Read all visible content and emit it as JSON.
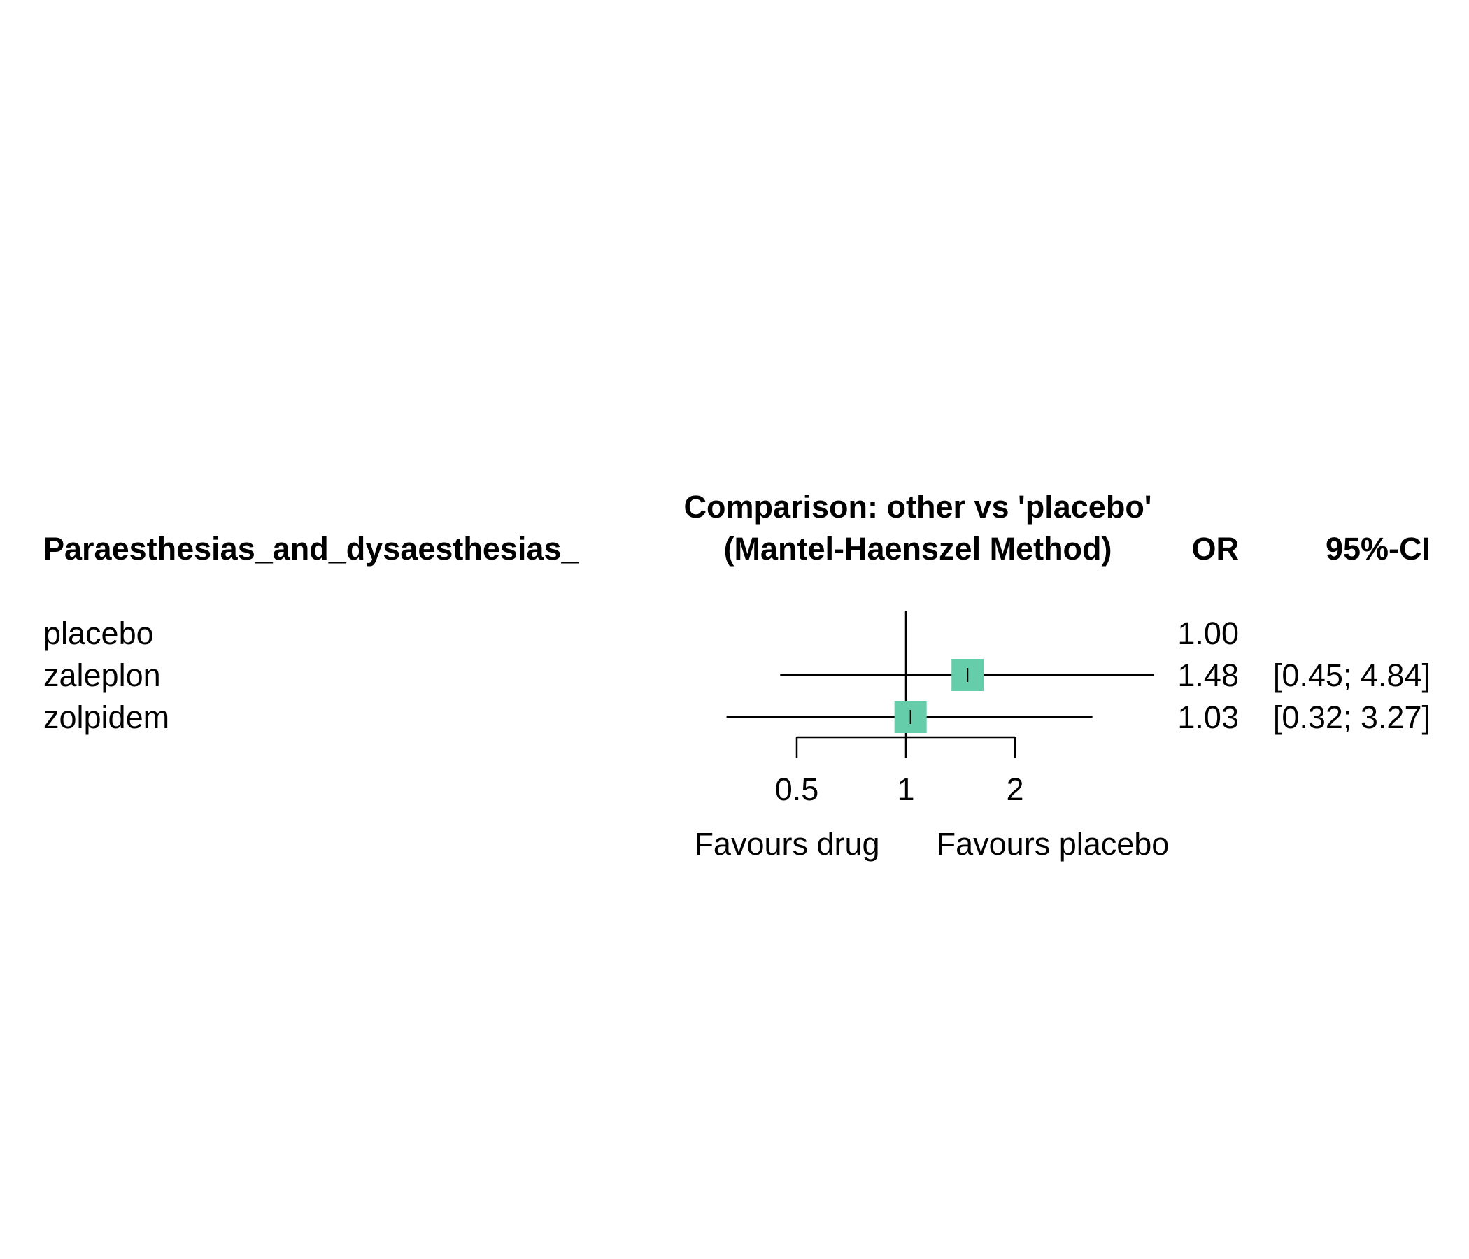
{
  "chart_data": {
    "type": "forest",
    "scale": "log",
    "null_value": 1,
    "header": {
      "outcome_label": "Paraesthesias_and_dysaesthesias_",
      "comparison_line1": "Comparison: other vs 'placebo'",
      "comparison_line2": "(Mantel-Haenszel Method)",
      "estimate_label": "OR",
      "ci_label": "95%-CI"
    },
    "rows": [
      {
        "treatment": "placebo",
        "or": 1.0,
        "or_text": "1.00",
        "lower": null,
        "upper": null,
        "ci_text": ""
      },
      {
        "treatment": "zaleplon",
        "or": 1.48,
        "or_text": "1.48",
        "lower": 0.45,
        "upper": 4.84,
        "ci_text": "[0.45; 4.84]"
      },
      {
        "treatment": "zolpidem",
        "or": 1.03,
        "or_text": "1.03",
        "lower": 0.32,
        "upper": 3.27,
        "ci_text": "[0.32; 3.27]"
      }
    ],
    "x_ticks": [
      0.5,
      1,
      2
    ],
    "x_tick_labels": [
      "0.5",
      "1",
      "2"
    ],
    "favours_left": "Favours drug",
    "favours_right": "Favours placebo",
    "marker_color": "#66CDAA"
  }
}
